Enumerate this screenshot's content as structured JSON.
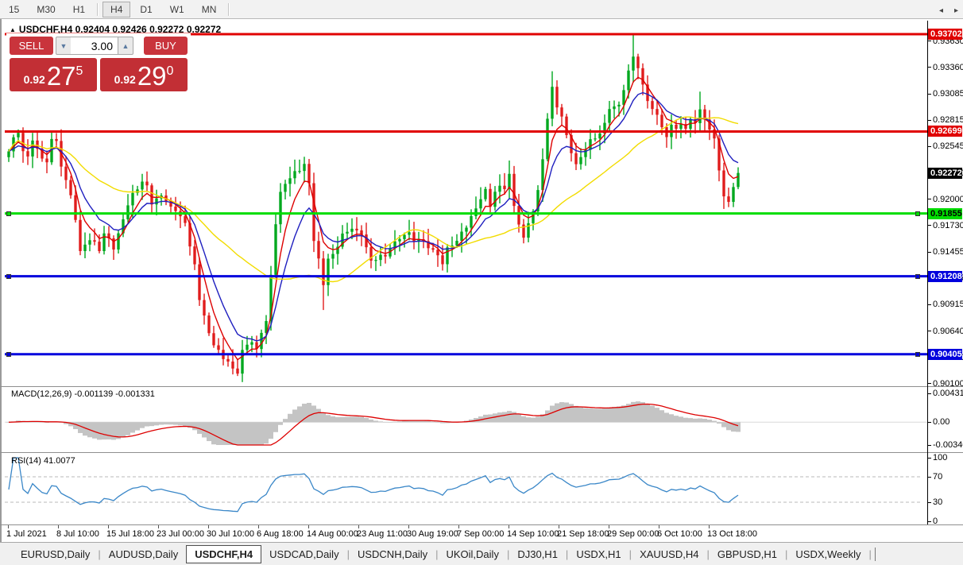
{
  "toolbar": {
    "timeframes": [
      "15",
      "M30",
      "H1",
      "H4",
      "D1",
      "W1",
      "MN"
    ],
    "active": "H4",
    "dividers_after": [
      2,
      6
    ]
  },
  "chart": {
    "title_symbol": "USDCHF,H4",
    "title_arrow": "▲",
    "ohlc": {
      "open": "0.92404",
      "high": "0.92426",
      "low": "0.92272",
      "close": "0.92272"
    },
    "price_axis_ticks": [
      "0.93630",
      "0.93360",
      "0.93085",
      "0.92815",
      "0.92545",
      "0.92270",
      "0.92000",
      "0.91730",
      "0.91455",
      "0.91185",
      "0.90915",
      "0.90640",
      "0.90370",
      "0.90100"
    ],
    "current_price": {
      "label": "0.92272",
      "price": 0.92272,
      "bg": "#000000",
      "fg": "#ffffff"
    }
  },
  "trade_panel": {
    "sell_label": "SELL",
    "buy_label": "BUY",
    "volume": "3.00",
    "spin_down": "▼",
    "spin_up": "▲",
    "sell_price": {
      "prefix": "0.92",
      "big": "27",
      "sup": "5"
    },
    "buy_price": {
      "prefix": "0.92",
      "big": "29",
      "sup": "0"
    }
  },
  "macd": {
    "label": "MACD(12,26,9)",
    "values": "-0.001139 -0.001331",
    "axis_ticks": [
      "0.00431",
      "0.00",
      "-0.003405"
    ],
    "vmax": 0.00431,
    "vmin": -0.003405
  },
  "rsi": {
    "label": "RSI(14)",
    "value": "41.0077",
    "axis_ticks": [
      100,
      70,
      30,
      0
    ],
    "levels": [
      70,
      30
    ]
  },
  "time_axis": {
    "labels": [
      "1 Jul 2021",
      "8 Jul 10:00",
      "15 Jul 18:00",
      "23 Jul 00:00",
      "30 Jul 10:00",
      "6 Aug 18:00",
      "14 Aug 00:00",
      "23 Aug 11:00",
      "30 Aug 19:00",
      "7 Sep 00:00",
      "14 Sep 10:00",
      "21 Sep 18:00",
      "29 Sep 00:00",
      "6 Oct 10:00",
      "13 Oct 18:00"
    ]
  },
  "tabs": {
    "items": [
      "EURUSD,Daily",
      "AUDUSD,Daily",
      "USDCHF,H4",
      "USDCAD,Daily",
      "USDCNH,Daily",
      "UKOil,Daily",
      "DJ30,H1",
      "USDX,H1",
      "XAUUSD,H4",
      "GBPUSD,H1",
      "USDX,Weekly"
    ],
    "active": "USDCHF,H4",
    "arrow_left": "◂",
    "arrow_right": "▸"
  },
  "chart_data": {
    "type": "candlestick",
    "symbol": "USDCHF",
    "timeframe": "H4",
    "n_bars": 154,
    "ylim": [
      0.90075,
      0.93841
    ],
    "price_path": [
      [
        0,
        0.9252
      ],
      [
        1,
        0.9262
      ],
      [
        2,
        0.9268
      ],
      [
        3,
        0.925
      ],
      [
        4,
        0.9246
      ],
      [
        5,
        0.9258
      ],
      [
        7,
        0.9242
      ],
      [
        8,
        0.9238
      ],
      [
        9,
        0.9262
      ],
      [
        10,
        0.9264
      ],
      [
        11,
        0.9233
      ],
      [
        13,
        0.9205
      ],
      [
        14,
        0.9176
      ],
      [
        15,
        0.9148
      ],
      [
        17,
        0.916
      ],
      [
        19,
        0.9145
      ],
      [
        20,
        0.9162
      ],
      [
        22,
        0.9152
      ],
      [
        24,
        0.9176
      ],
      [
        25,
        0.9196
      ],
      [
        27,
        0.9213
      ],
      [
        29,
        0.9217
      ],
      [
        30,
        0.9196
      ],
      [
        32,
        0.9205
      ],
      [
        34,
        0.9192
      ],
      [
        35,
        0.9191
      ],
      [
        37,
        0.9172
      ],
      [
        39,
        0.9135
      ],
      [
        40,
        0.9094
      ],
      [
        42,
        0.9061
      ],
      [
        44,
        0.9045
      ],
      [
        45,
        0.9033
      ],
      [
        47,
        0.9029
      ],
      [
        48,
        0.9021
      ],
      [
        49,
        0.9041
      ],
      [
        51,
        0.9053
      ],
      [
        52,
        0.9047
      ],
      [
        54,
        0.9078
      ],
      [
        55,
        0.9119
      ],
      [
        56,
        0.9176
      ],
      [
        57,
        0.9209
      ],
      [
        59,
        0.9221
      ],
      [
        60,
        0.9229
      ],
      [
        62,
        0.9233
      ],
      [
        63,
        0.9213
      ],
      [
        64,
        0.916
      ],
      [
        66,
        0.9115
      ],
      [
        67,
        0.9135
      ],
      [
        69,
        0.9152
      ],
      [
        70,
        0.9164
      ],
      [
        72,
        0.917
      ],
      [
        73,
        0.9172
      ],
      [
        75,
        0.9152
      ],
      [
        76,
        0.9139
      ],
      [
        77,
        0.9135
      ],
      [
        79,
        0.9143
      ],
      [
        80,
        0.9153
      ],
      [
        82,
        0.916
      ],
      [
        84,
        0.9164
      ],
      [
        85,
        0.9156
      ],
      [
        87,
        0.916
      ],
      [
        88,
        0.915
      ],
      [
        90,
        0.9145
      ],
      [
        91,
        0.9135
      ],
      [
        92,
        0.9147
      ],
      [
        94,
        0.9156
      ],
      [
        95,
        0.9164
      ],
      [
        97,
        0.918
      ],
      [
        99,
        0.9202
      ],
      [
        100,
        0.921
      ],
      [
        101,
        0.9196
      ],
      [
        102,
        0.9209
      ],
      [
        104,
        0.9213
      ],
      [
        105,
        0.9223
      ],
      [
        106,
        0.9192
      ],
      [
        107,
        0.9172
      ],
      [
        108,
        0.9164
      ],
      [
        110,
        0.9184
      ],
      [
        111,
        0.9209
      ],
      [
        112,
        0.9241
      ],
      [
        113,
        0.9282
      ],
      [
        114,
        0.9315
      ],
      [
        115,
        0.9291
      ],
      [
        116,
        0.9282
      ],
      [
        117,
        0.927
      ],
      [
        118,
        0.9245
      ],
      [
        119,
        0.9233
      ],
      [
        120,
        0.9245
      ],
      [
        121,
        0.9254
      ],
      [
        122,
        0.9258
      ],
      [
        124,
        0.9266
      ],
      [
        125,
        0.9278
      ],
      [
        126,
        0.9291
      ],
      [
        128,
        0.9299
      ],
      [
        129,
        0.9315
      ],
      [
        130,
        0.9336
      ],
      [
        131,
        0.9348
      ],
      [
        132,
        0.9332
      ],
      [
        133,
        0.9319
      ],
      [
        134,
        0.9303
      ],
      [
        136,
        0.9291
      ],
      [
        137,
        0.9274
      ],
      [
        138,
        0.9264
      ],
      [
        139,
        0.9278
      ],
      [
        140,
        0.9274
      ],
      [
        141,
        0.9281
      ],
      [
        142,
        0.9276
      ],
      [
        144,
        0.9282
      ],
      [
        145,
        0.9295
      ],
      [
        146,
        0.9282
      ],
      [
        147,
        0.9272
      ],
      [
        148,
        0.9264
      ],
      [
        149,
        0.9233
      ],
      [
        150,
        0.9204
      ],
      [
        151,
        0.9194
      ],
      [
        152,
        0.9213
      ],
      [
        153,
        0.92272
      ]
    ],
    "spikes": {
      "2": {
        "high": 0.9272
      },
      "48": {
        "low": 0.9018
      },
      "66": {
        "low": 0.9086
      },
      "105": {
        "high": 0.924
      },
      "114": {
        "high": 0.9332
      },
      "131": {
        "high": 0.937
      },
      "145": {
        "high": 0.9311
      },
      "151": {
        "low": 0.9192
      }
    },
    "hlines": [
      {
        "price": 0.93702,
        "label": "0.93702",
        "color": "#e00000",
        "text": "#ffffff",
        "handles": false
      },
      {
        "price": 0.92699,
        "label": "0.92699",
        "color": "#e00000",
        "text": "#ffffff",
        "handles": false
      },
      {
        "price": 0.91855,
        "label": "0.91855",
        "color": "#00dd00",
        "text": "#000000",
        "handles": true
      },
      {
        "price": 0.91208,
        "label": "0.91208",
        "color": "#0000dd",
        "text": "#ffffff",
        "handles": true
      },
      {
        "price": 0.90405,
        "label": "0.90405",
        "color": "#0000dd",
        "text": "#ffffff",
        "handles": true
      }
    ],
    "moving_averages": [
      {
        "type": "ema",
        "period": 5,
        "color": "#dd0000"
      },
      {
        "type": "ema",
        "period": 10,
        "color": "#1f1fbf"
      },
      {
        "type": "sma",
        "period": 30,
        "color": "#f2dc00"
      }
    ],
    "colors": {
      "bull": "#00a81e",
      "bear": "#e01c1c",
      "macd_hist": "#c4c4c4",
      "macd_signal": "#dd0000",
      "rsi_line": "#3a87c8"
    }
  }
}
